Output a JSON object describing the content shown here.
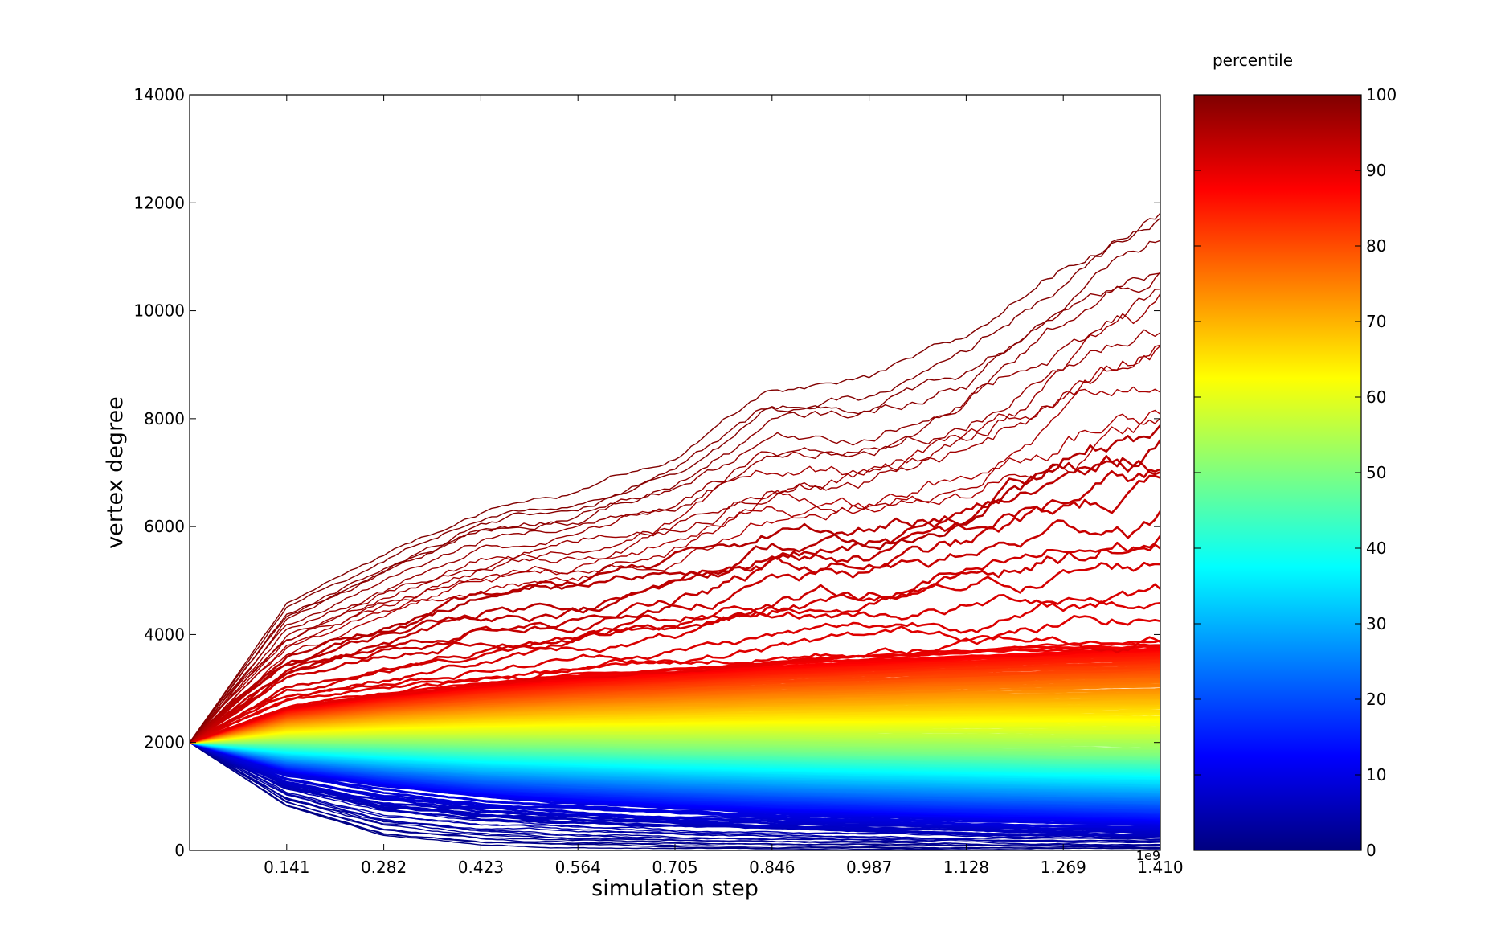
{
  "chart_data": {
    "type": "line",
    "title": "",
    "xlabel": "simulation step",
    "ylabel": "vertex degree",
    "x_offset_label": "1e9",
    "xlim": [
      0,
      1.41
    ],
    "ylim": [
      0,
      14000
    ],
    "x_ticks": [
      "0.141",
      "0.282",
      "0.423",
      "0.564",
      "0.705",
      "0.846",
      "0.987",
      "1.128",
      "1.269",
      "1.410"
    ],
    "y_ticks": [
      "0",
      "2000",
      "4000",
      "6000",
      "8000",
      "10000",
      "12000",
      "14000"
    ],
    "grid": false,
    "start_value": 2000,
    "percentile_bands": {
      "x": [
        0,
        0.141,
        0.282,
        0.423,
        0.564,
        0.705,
        0.846,
        0.987,
        1.128,
        1.269,
        1.41
      ],
      "p0": [
        2000,
        800,
        250,
        80,
        40,
        20,
        10,
        5,
        0,
        0,
        0
      ],
      "p10": [
        2000,
        1450,
        1200,
        1000,
        880,
        780,
        700,
        640,
        580,
        530,
        480
      ],
      "p50": [
        2000,
        2000,
        1980,
        1950,
        1930,
        1900,
        1880,
        1850,
        1830,
        1800,
        1780
      ],
      "p90": [
        2000,
        2650,
        2900,
        3100,
        3250,
        3380,
        3500,
        3600,
        3700,
        3780,
        3850
      ],
      "p100": [
        2000,
        4600,
        5500,
        6400,
        6700,
        7400,
        8600,
        8700,
        9400,
        10900,
        12000
      ]
    },
    "colorbar": {
      "title": "percentile",
      "range": [
        0,
        100
      ],
      "ticks": [
        "0",
        "10",
        "20",
        "30",
        "40",
        "50",
        "60",
        "70",
        "80",
        "90",
        "100"
      ],
      "colormap": "jet",
      "colors": [
        "#00007f",
        "#0000ff",
        "#007fff",
        "#00ffff",
        "#7fff7f",
        "#ffff00",
        "#ff7f00",
        "#ff0000",
        "#7f0000"
      ]
    }
  }
}
